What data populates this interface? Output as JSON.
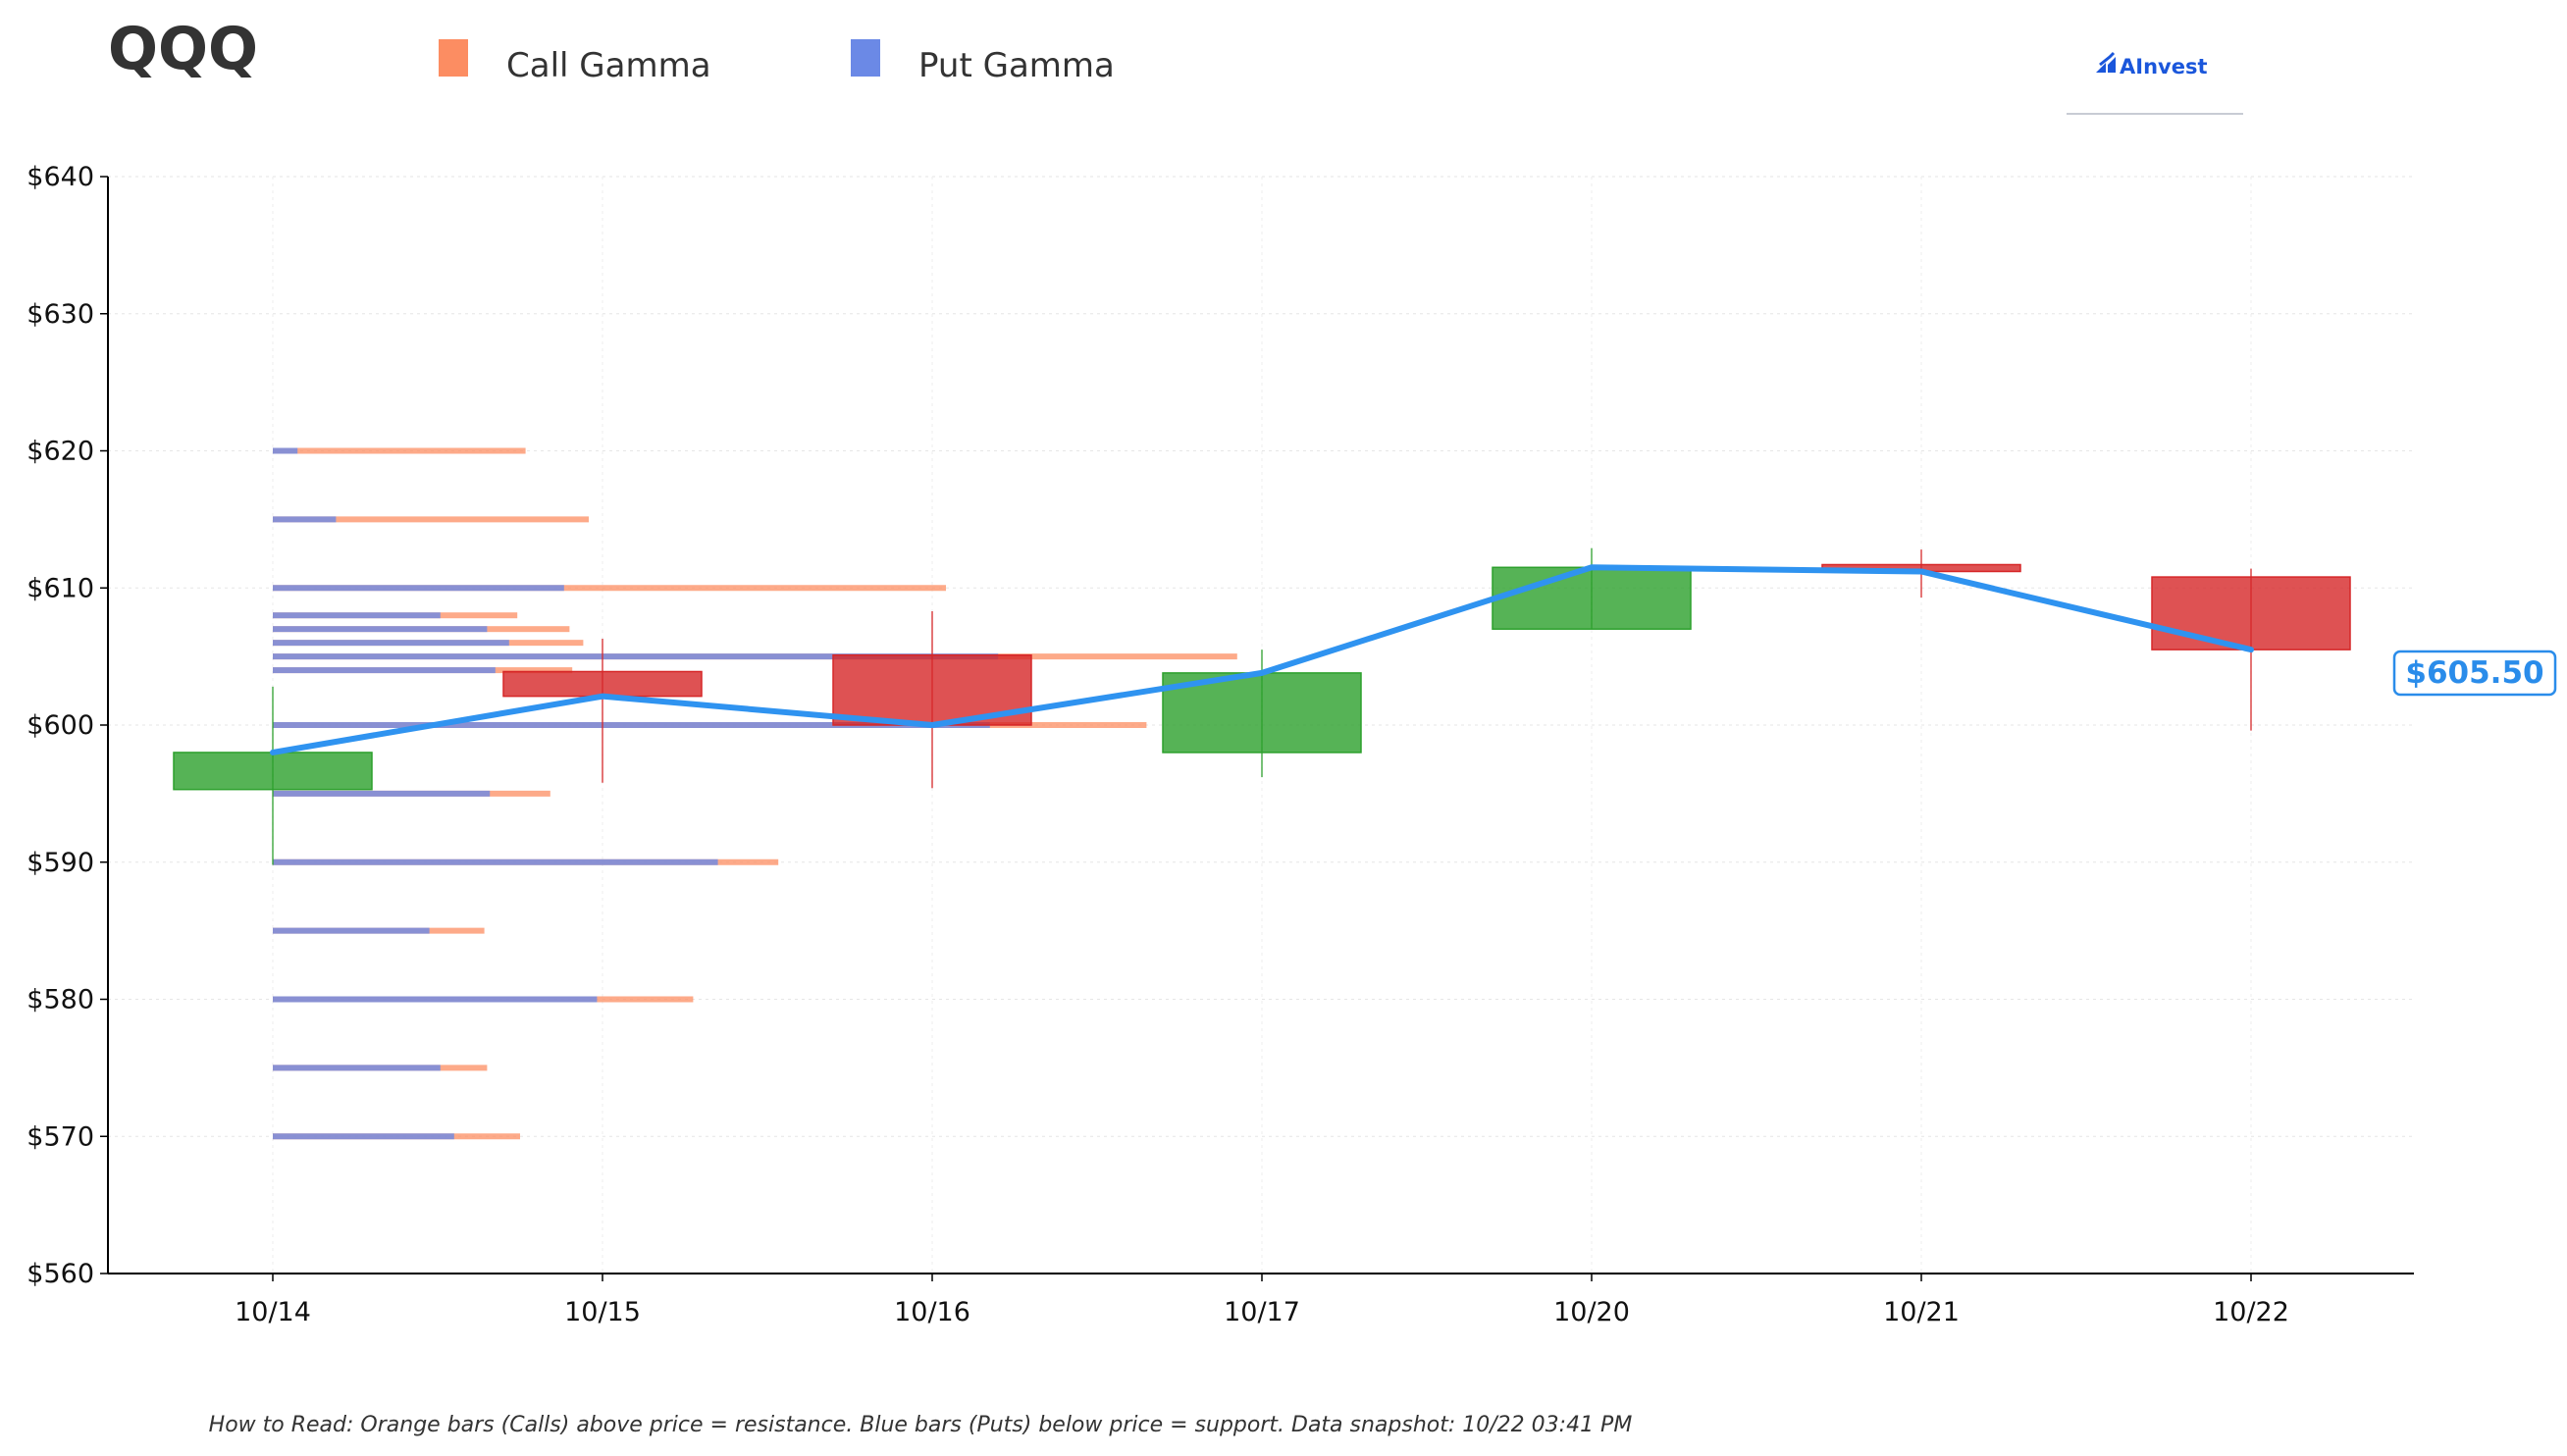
{
  "chart_data": {
    "type": "candlestick",
    "title": "QQQ",
    "ylim": [
      560,
      640
    ],
    "y_ticks": [
      560,
      570,
      580,
      590,
      600,
      610,
      620,
      630,
      640
    ],
    "y_tick_prefix": "$",
    "grid": true,
    "legend": {
      "placement": "top",
      "items": [
        {
          "label": "Call Gamma",
          "color": "#fc8d62"
        },
        {
          "label": "Put Gamma",
          "color": "#6b89e6"
        }
      ]
    },
    "categories": [
      "10/14",
      "10/15",
      "10/16",
      "10/17",
      "10/20",
      "10/21",
      "10/22"
    ],
    "candles": [
      {
        "date": "10/14",
        "open": 595.3,
        "high": 602.8,
        "low": 589.8,
        "close": 598.0
      },
      {
        "date": "10/15",
        "open": 603.9,
        "high": 606.3,
        "low": 595.8,
        "close": 602.1
      },
      {
        "date": "10/16",
        "open": 605.1,
        "high": 608.3,
        "low": 595.4,
        "close": 600.0
      },
      {
        "date": "10/17",
        "open": 598.0,
        "high": 605.5,
        "low": 596.2,
        "close": 603.8
      },
      {
        "date": "10/20",
        "open": 607.0,
        "high": 612.9,
        "low": 607.0,
        "close": 611.5
      },
      {
        "date": "10/21",
        "open": 611.7,
        "high": 612.8,
        "low": 609.3,
        "close": 611.2
      },
      {
        "date": "10/22",
        "open": 610.8,
        "high": 611.4,
        "low": 599.6,
        "close": 605.5
      }
    ],
    "price_line": {
      "color": "#2f93f0",
      "values": [
        598.0,
        602.1,
        600.0,
        603.8,
        611.5,
        611.2,
        605.5
      ]
    },
    "last_price_label": "$605.50",
    "gamma_levels": [
      {
        "strike": 620,
        "put": 0.09,
        "total": 0.92
      },
      {
        "strike": 615,
        "put": 0.23,
        "total": 1.15
      },
      {
        "strike": 610,
        "put": 1.06,
        "total": 2.45
      },
      {
        "strike": 608,
        "put": 0.61,
        "total": 0.89
      },
      {
        "strike": 607,
        "put": 0.78,
        "total": 1.08
      },
      {
        "strike": 606,
        "put": 0.86,
        "total": 1.13
      },
      {
        "strike": 605,
        "put": 2.64,
        "total": 3.51
      },
      {
        "strike": 604,
        "put": 0.81,
        "total": 1.09
      },
      {
        "strike": 600,
        "put": 2.61,
        "total": 3.18
      },
      {
        "strike": 595,
        "put": 0.79,
        "total": 1.01
      },
      {
        "strike": 590,
        "put": 1.62,
        "total": 1.84
      },
      {
        "strike": 585,
        "put": 0.57,
        "total": 0.77
      },
      {
        "strike": 580,
        "put": 1.18,
        "total": 1.53
      },
      {
        "strike": 575,
        "put": 0.61,
        "total": 0.78
      },
      {
        "strike": 570,
        "put": 0.66,
        "total": 0.9
      }
    ],
    "colors": {
      "up": "#2ca02c",
      "down": "#d62728",
      "call": "#fc8d62",
      "put": "#6b89e6"
    }
  },
  "brand": {
    "name": "AInvest"
  },
  "footer": "How to Read: Orange bars (Calls) above price = resistance. Blue bars (Puts) below price = support. Data snapshot: 10/22 03:41 PM"
}
